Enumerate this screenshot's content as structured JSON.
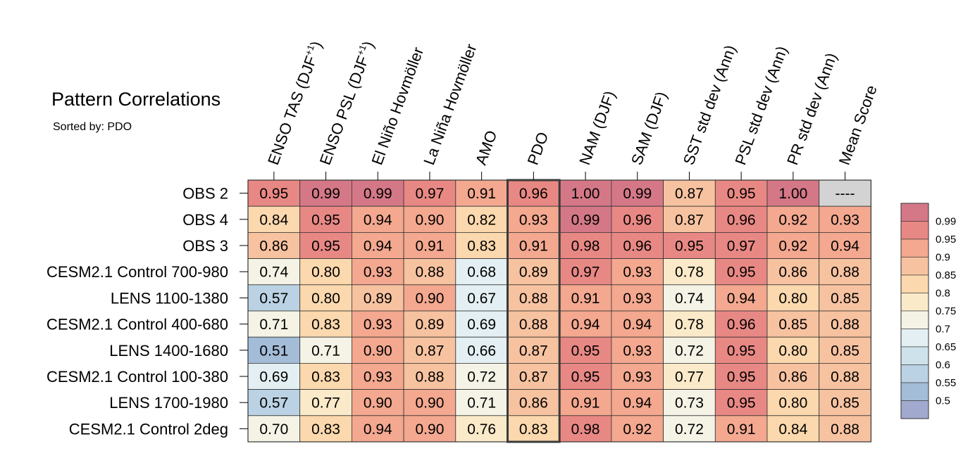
{
  "title": "Pattern Correlations",
  "subtitle": "Sorted by: PDO",
  "colors": {
    "grid": "#333333",
    "missing": "#d3d3d3",
    "highlight": "#3a3a3a",
    "scale": [
      "#a1a9cf",
      "#a3bcd8",
      "#bad2e3",
      "#cee2ec",
      "#e3eff3",
      "#f4f3e6",
      "#fbeac9",
      "#fbd8ad",
      "#f7c2a0",
      "#f3a88f",
      "#e88884",
      "#d47887"
    ]
  },
  "chart_data": {
    "type": "heatmap",
    "columns": [
      "ENSO TAS (DJF+1)",
      "ENSO PSL (DJF+1)",
      "El Niño Hovmöller",
      "La Niña Hovmöller",
      "AMO",
      "PDO",
      "NAM (DJF)",
      "SAM (DJF)",
      "SST std dev (Ann)",
      "PSL std dev (Ann)",
      "PR std dev (Ann)",
      "Mean Score"
    ],
    "column_labels": [
      {
        "base": "ENSO TAS (DJF",
        "sup": "+1",
        "end": ")"
      },
      {
        "base": "ENSO PSL (DJF",
        "sup": "+1",
        "end": ")"
      },
      {
        "base": "El Niño Hovmöller"
      },
      {
        "base": "La Niña Hovmöller"
      },
      {
        "base": "AMO"
      },
      {
        "base": "PDO"
      },
      {
        "base": "NAM (DJF)"
      },
      {
        "base": "SAM (DJF)"
      },
      {
        "base": "SST std dev (Ann)"
      },
      {
        "base": "PSL std dev (Ann)"
      },
      {
        "base": "PR std dev (Ann)"
      },
      {
        "base": "Mean Score"
      }
    ],
    "rows": [
      "OBS 2",
      "OBS 4",
      "OBS 3",
      "CESM2.1 Control 700-980",
      "LENS 1100-1380",
      "CESM2.1 Control 400-680",
      "LENS 1400-1680",
      "CESM2.1 Control 100-380",
      "LENS 1700-1980",
      "CESM2.1 Control 2deg"
    ],
    "values": [
      [
        "0.95",
        "0.99",
        "0.99",
        "0.97",
        "0.91",
        "0.96",
        "1.00",
        "0.99",
        "0.87",
        "0.95",
        "1.00",
        "----"
      ],
      [
        "0.84",
        "0.95",
        "0.94",
        "0.90",
        "0.82",
        "0.93",
        "0.99",
        "0.96",
        "0.87",
        "0.96",
        "0.92",
        "0.93"
      ],
      [
        "0.86",
        "0.95",
        "0.94",
        "0.91",
        "0.83",
        "0.91",
        "0.98",
        "0.96",
        "0.95",
        "0.97",
        "0.92",
        "0.94"
      ],
      [
        "0.74",
        "0.80",
        "0.93",
        "0.88",
        "0.68",
        "0.89",
        "0.97",
        "0.93",
        "0.78",
        "0.95",
        "0.86",
        "0.88"
      ],
      [
        "0.57",
        "0.80",
        "0.89",
        "0.90",
        "0.67",
        "0.88",
        "0.91",
        "0.93",
        "0.74",
        "0.94",
        "0.80",
        "0.85"
      ],
      [
        "0.71",
        "0.83",
        "0.93",
        "0.89",
        "0.69",
        "0.88",
        "0.94",
        "0.94",
        "0.78",
        "0.96",
        "0.85",
        "0.88"
      ],
      [
        "0.51",
        "0.71",
        "0.90",
        "0.87",
        "0.66",
        "0.87",
        "0.95",
        "0.93",
        "0.72",
        "0.95",
        "0.80",
        "0.85"
      ],
      [
        "0.69",
        "0.83",
        "0.93",
        "0.88",
        "0.72",
        "0.87",
        "0.95",
        "0.93",
        "0.77",
        "0.95",
        "0.86",
        "0.88"
      ],
      [
        "0.57",
        "0.77",
        "0.90",
        "0.90",
        "0.71",
        "0.86",
        "0.91",
        "0.94",
        "0.73",
        "0.95",
        "0.80",
        "0.85"
      ],
      [
        "0.70",
        "0.83",
        "0.94",
        "0.90",
        "0.76",
        "0.83",
        "0.98",
        "0.92",
        "0.72",
        "0.91",
        "0.84",
        "0.88"
      ]
    ],
    "highlight_column": "PDO",
    "colorbar": {
      "levels": [
        "0.5",
        "0.55",
        "0.6",
        "0.65",
        "0.7",
        "0.75",
        "0.8",
        "0.85",
        "0.9",
        "0.95",
        "0.99"
      ],
      "bounds": [
        0.5,
        0.55,
        0.6,
        0.65,
        0.7,
        0.75,
        0.8,
        0.85,
        0.9,
        0.95,
        0.99
      ]
    }
  }
}
